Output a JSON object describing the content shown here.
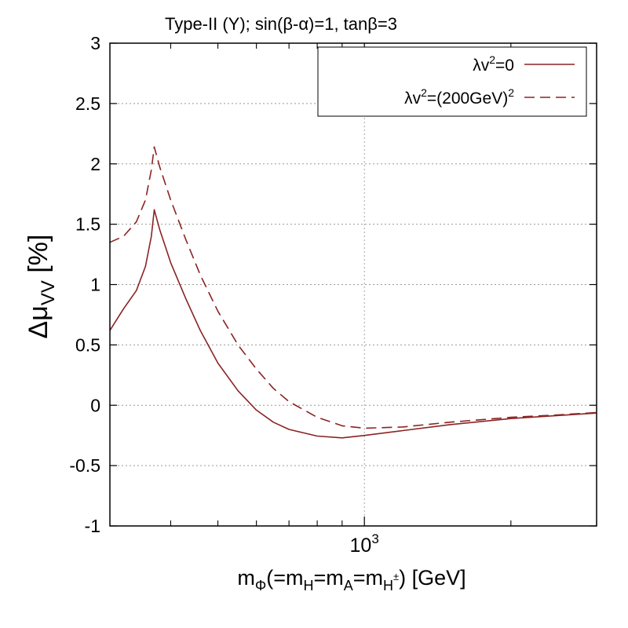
{
  "chart_data": {
    "type": "line",
    "title": "Type-II (Y); sin(β-α)=1, tanβ=3",
    "xscale": "log",
    "xlim": [
      300,
      3000
    ],
    "ylim": [
      -1,
      3
    ],
    "yticks": [
      {
        "value": -1,
        "label": "-1"
      },
      {
        "value": -0.5,
        "label": "-0.5"
      },
      {
        "value": 0,
        "label": "0"
      },
      {
        "value": 0.5,
        "label": "0.5"
      },
      {
        "value": 1,
        "label": "1"
      },
      {
        "value": 1.5,
        "label": "1.5"
      },
      {
        "value": 2,
        "label": "2"
      },
      {
        "value": 2.5,
        "label": "2.5"
      },
      {
        "value": 3,
        "label": "3"
      }
    ],
    "xtick_major": {
      "value": 1000,
      "base": "10",
      "exponent": "3"
    },
    "xtick_minor": [
      400,
      500,
      600,
      700,
      800,
      900,
      2000,
      3000
    ],
    "xlabel": {
      "m": "m",
      "phi": "Φ",
      "eq": "(=m",
      "h": "H",
      "eqa": "=m",
      "a": "A",
      "eqh": "=m",
      "hpm": "H",
      "pm": "±",
      "unit": ") [GeV]"
    },
    "ylabel": {
      "delta_mu": "Δμ",
      "vv": "VV",
      "unit": "[%]"
    },
    "legend": {
      "position": "top-right",
      "entries": [
        {
          "series": 0,
          "label_a": "λv",
          "sup_a": "2",
          "label_b": "=0",
          "sup_b": ""
        },
        {
          "series": 1,
          "label_a": "λv",
          "sup_a": "2",
          "label_b": "=(200GeV)",
          "sup_b": "2"
        }
      ]
    },
    "series": [
      {
        "name": "λv²=0",
        "style": "solid",
        "color": "#8b2323",
        "points": [
          [
            300,
            0.62
          ],
          [
            320,
            0.8
          ],
          [
            340,
            0.95
          ],
          [
            355,
            1.15
          ],
          [
            365,
            1.4
          ],
          [
            370,
            1.62
          ],
          [
            380,
            1.45
          ],
          [
            400,
            1.18
          ],
          [
            430,
            0.88
          ],
          [
            460,
            0.62
          ],
          [
            500,
            0.35
          ],
          [
            550,
            0.12
          ],
          [
            600,
            -0.04
          ],
          [
            650,
            -0.14
          ],
          [
            700,
            -0.2
          ],
          [
            800,
            -0.255
          ],
          [
            900,
            -0.27
          ],
          [
            1000,
            -0.25
          ],
          [
            1200,
            -0.21
          ],
          [
            1500,
            -0.16
          ],
          [
            2000,
            -0.11
          ],
          [
            2500,
            -0.085
          ],
          [
            3000,
            -0.065
          ]
        ]
      },
      {
        "name": "λv²=(200GeV)²",
        "style": "dashed",
        "color": "#8b2323",
        "points": [
          [
            300,
            1.35
          ],
          [
            320,
            1.4
          ],
          [
            340,
            1.52
          ],
          [
            355,
            1.7
          ],
          [
            365,
            1.95
          ],
          [
            370,
            2.14
          ],
          [
            380,
            1.97
          ],
          [
            400,
            1.7
          ],
          [
            430,
            1.37
          ],
          [
            460,
            1.08
          ],
          [
            500,
            0.78
          ],
          [
            550,
            0.5
          ],
          [
            600,
            0.3
          ],
          [
            650,
            0.14
          ],
          [
            700,
            0.03
          ],
          [
            800,
            -0.1
          ],
          [
            900,
            -0.17
          ],
          [
            1000,
            -0.19
          ],
          [
            1200,
            -0.18
          ],
          [
            1500,
            -0.14
          ],
          [
            2000,
            -0.1
          ],
          [
            2500,
            -0.08
          ],
          [
            3000,
            -0.06
          ]
        ]
      }
    ]
  }
}
